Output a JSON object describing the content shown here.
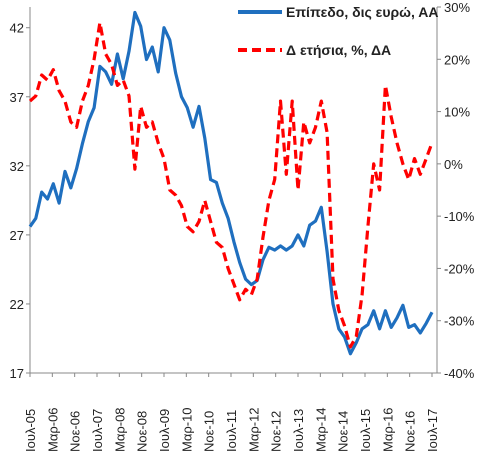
{
  "chart_data": {
    "type": "line",
    "title": "",
    "x_ticks": [
      "Ιουλ-05",
      "Μαρ-06",
      "Νοε-06",
      "Ιουλ-07",
      "Μαρ-08",
      "Νοε-08",
      "Ιουλ-09",
      "Μαρ-10",
      "Νοε-10",
      "Ιουλ-11",
      "Μαρ-12",
      "Νοε-12",
      "Ιουλ-13",
      "Μαρ-14",
      "Νοε-14",
      "Ιουλ-15",
      "Μαρ-16",
      "Νοε-16",
      "Ιουλ-17"
    ],
    "y_left": {
      "ticks": [
        17,
        22,
        27,
        32,
        37,
        42
      ],
      "range": [
        17,
        43.5
      ]
    },
    "y_right": {
      "ticks": [
        "-40%",
        "-30%",
        "-20%",
        "-10%",
        "0%",
        "10%",
        "20%",
        "30%"
      ],
      "tick_values": [
        -40,
        -30,
        -20,
        -10,
        0,
        10,
        20,
        30
      ],
      "range": [
        -40,
        30
      ]
    },
    "grid": false,
    "legend_position": "top-right",
    "series": [
      {
        "name": "Επίπεδο, δις ευρώ, ΑΑ",
        "axis": "left",
        "color": "#1f6fbf",
        "style": "solid",
        "points": [
          [
            0,
            27.6
          ],
          [
            1,
            28.2
          ],
          [
            2,
            30.1
          ],
          [
            3,
            29.6
          ],
          [
            4,
            30.7
          ],
          [
            5,
            29.3
          ],
          [
            6,
            31.6
          ],
          [
            7,
            30.4
          ],
          [
            8,
            31.8
          ],
          [
            9,
            33.6
          ],
          [
            10,
            35.2
          ],
          [
            11,
            36.2
          ],
          [
            12,
            39.2
          ],
          [
            13,
            38.8
          ],
          [
            14,
            37.9
          ],
          [
            15,
            40.1
          ],
          [
            16,
            38.3
          ],
          [
            17,
            40.3
          ],
          [
            18,
            43.1
          ],
          [
            19,
            42.1
          ],
          [
            20,
            39.7
          ],
          [
            21,
            40.6
          ],
          [
            22,
            38.8
          ],
          [
            23,
            42.0
          ],
          [
            24,
            41.1
          ],
          [
            25,
            38.7
          ],
          [
            26,
            37.0
          ],
          [
            27,
            36.2
          ],
          [
            28,
            34.8
          ],
          [
            29,
            36.3
          ],
          [
            30,
            34.0
          ],
          [
            31,
            31.0
          ],
          [
            32,
            30.8
          ],
          [
            33,
            29.3
          ],
          [
            34,
            28.2
          ],
          [
            35,
            26.5
          ],
          [
            36,
            25.0
          ],
          [
            37,
            23.8
          ],
          [
            38,
            23.4
          ],
          [
            39,
            23.7
          ],
          [
            40,
            25.2
          ],
          [
            41,
            26.1
          ],
          [
            42,
            25.9
          ],
          [
            43,
            26.2
          ],
          [
            44,
            25.9
          ],
          [
            45,
            26.2
          ],
          [
            46,
            27.0
          ],
          [
            47,
            26.2
          ],
          [
            48,
            27.7
          ],
          [
            49,
            28.0
          ],
          [
            50,
            29.0
          ],
          [
            51,
            25.8
          ],
          [
            52,
            22.0
          ],
          [
            53,
            20.2
          ],
          [
            54,
            19.6
          ],
          [
            55,
            18.4
          ],
          [
            56,
            19.2
          ],
          [
            57,
            20.2
          ],
          [
            58,
            20.5
          ],
          [
            59,
            21.5
          ],
          [
            60,
            20.2
          ],
          [
            61,
            21.5
          ],
          [
            62,
            20.3
          ],
          [
            63,
            21.0
          ],
          [
            64,
            21.9
          ],
          [
            65,
            20.3
          ],
          [
            66,
            20.5
          ],
          [
            67,
            19.9
          ],
          [
            68,
            20.6
          ],
          [
            69,
            21.4
          ]
        ]
      },
      {
        "name": "Δ ετήσια, %, ΔΑ",
        "axis": "right",
        "color": "#ff0000",
        "style": "dashed",
        "points": [
          [
            0,
            12
          ],
          [
            1,
            13
          ],
          [
            2,
            17
          ],
          [
            3,
            16
          ],
          [
            4,
            18
          ],
          [
            5,
            14
          ],
          [
            6,
            12
          ],
          [
            7,
            8
          ],
          [
            8,
            7
          ],
          [
            9,
            12
          ],
          [
            10,
            15
          ],
          [
            11,
            20
          ],
          [
            12,
            27
          ],
          [
            13,
            21
          ],
          [
            14,
            19
          ],
          [
            15,
            15
          ],
          [
            16,
            16
          ],
          [
            17,
            13
          ],
          [
            18,
            -1
          ],
          [
            19,
            11
          ],
          [
            20,
            7
          ],
          [
            21,
            8
          ],
          [
            22,
            4
          ],
          [
            23,
            1
          ],
          [
            24,
            -5
          ],
          [
            25,
            -6
          ],
          [
            26,
            -8
          ],
          [
            27,
            -12
          ],
          [
            28,
            -13
          ],
          [
            29,
            -11
          ],
          [
            30,
            -7
          ],
          [
            31,
            -11
          ],
          [
            32,
            -15
          ],
          [
            33,
            -16
          ],
          [
            34,
            -20
          ],
          [
            35,
            -23
          ],
          [
            36,
            -26
          ],
          [
            37,
            -24
          ],
          [
            38,
            -25
          ],
          [
            39,
            -22
          ],
          [
            40,
            -14
          ],
          [
            41,
            -7
          ],
          [
            42,
            -3
          ],
          [
            43,
            12
          ],
          [
            44,
            -2
          ],
          [
            45,
            12
          ],
          [
            46,
            -5
          ],
          [
            47,
            8
          ],
          [
            48,
            4
          ],
          [
            49,
            7
          ],
          [
            50,
            12
          ],
          [
            51,
            6
          ],
          [
            52,
            -22
          ],
          [
            53,
            -28
          ],
          [
            54,
            -31
          ],
          [
            55,
            -35
          ],
          [
            56,
            -33
          ],
          [
            57,
            -25
          ],
          [
            58,
            -12
          ],
          [
            59,
            0
          ],
          [
            60,
            -5
          ],
          [
            61,
            15
          ],
          [
            62,
            9
          ],
          [
            63,
            4
          ],
          [
            64,
            0
          ],
          [
            65,
            -3
          ],
          [
            66,
            1
          ],
          [
            67,
            -2
          ],
          [
            68,
            1
          ],
          [
            69,
            4
          ]
        ]
      }
    ]
  }
}
